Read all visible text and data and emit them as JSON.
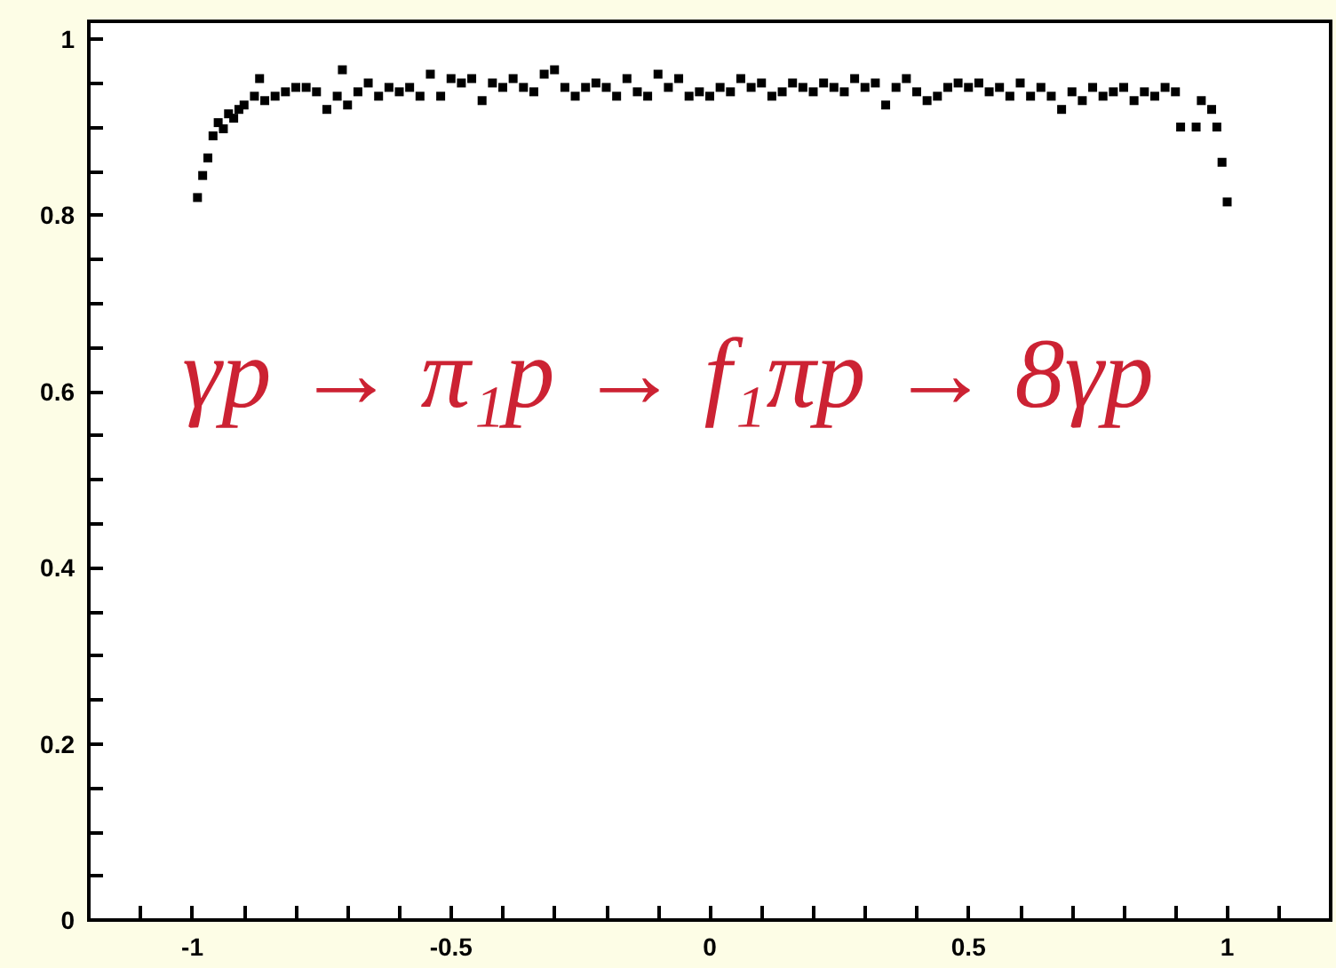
{
  "chart_data": {
    "type": "scatter",
    "marker": "square",
    "color": "#000000",
    "grid": false,
    "annotations": [
      "γp → π₁p → f₁πp → 8γp"
    ],
    "xlim": [
      -1.2,
      1.2
    ],
    "ylim": [
      0,
      1.02
    ],
    "xticks": [
      {
        "value": -1.2,
        "label": null
      },
      {
        "value": -1.1,
        "label": null
      },
      -1,
      {
        "value": -0.9,
        "label": null
      },
      {
        "value": -0.8,
        "label": null
      },
      {
        "value": -0.7,
        "label": null
      },
      {
        "value": -0.6,
        "label": null
      },
      -0.5,
      {
        "value": -0.4,
        "label": null
      },
      {
        "value": -0.3,
        "label": null
      },
      {
        "value": -0.2,
        "label": null
      },
      {
        "value": -0.1,
        "label": null
      },
      0,
      {
        "value": 0.1,
        "label": null
      },
      {
        "value": 0.2,
        "label": null
      },
      {
        "value": 0.3,
        "label": null
      },
      {
        "value": 0.4,
        "label": null
      },
      0.5,
      {
        "value": 0.6,
        "label": null
      },
      {
        "value": 0.7,
        "label": null
      },
      {
        "value": 0.8,
        "label": null
      },
      {
        "value": 0.9,
        "label": null
      },
      1,
      {
        "value": 1.1,
        "label": null
      }
    ],
    "yticks": [
      0,
      {
        "value": 0.05,
        "label": null
      },
      {
        "value": 0.1,
        "label": null
      },
      {
        "value": 0.15,
        "label": null
      },
      0.2,
      {
        "value": 0.25,
        "label": null
      },
      {
        "value": 0.3,
        "label": null
      },
      {
        "value": 0.35,
        "label": null
      },
      0.4,
      {
        "value": 0.45,
        "label": null
      },
      {
        "value": 0.5,
        "label": null
      },
      {
        "value": 0.55,
        "label": null
      },
      0.6,
      {
        "value": 0.65,
        "label": null
      },
      {
        "value": 0.7,
        "label": null
      },
      {
        "value": 0.75,
        "label": null
      },
      0.8,
      {
        "value": 0.85,
        "label": null
      },
      {
        "value": 0.9,
        "label": null
      },
      {
        "value": 0.95,
        "label": null
      },
      1
    ],
    "x": [
      -0.99,
      -0.98,
      -0.97,
      -0.96,
      -0.95,
      -0.94,
      -0.93,
      -0.92,
      -0.91,
      -0.9,
      -0.88,
      -0.87,
      -0.86,
      -0.84,
      -0.82,
      -0.8,
      -0.78,
      -0.76,
      -0.74,
      -0.72,
      -0.71,
      -0.7,
      -0.68,
      -0.66,
      -0.64,
      -0.62,
      -0.6,
      -0.58,
      -0.56,
      -0.54,
      -0.52,
      -0.5,
      -0.48,
      -0.46,
      -0.44,
      -0.42,
      -0.4,
      -0.38,
      -0.36,
      -0.34,
      -0.32,
      -0.3,
      -0.28,
      -0.26,
      -0.24,
      -0.22,
      -0.2,
      -0.18,
      -0.16,
      -0.14,
      -0.12,
      -0.1,
      -0.08,
      -0.06,
      -0.04,
      -0.02,
      0,
      0.02,
      0.04,
      0.06,
      0.08,
      0.1,
      0.12,
      0.14,
      0.16,
      0.18,
      0.2,
      0.22,
      0.24,
      0.26,
      0.28,
      0.3,
      0.32,
      0.34,
      0.36,
      0.38,
      0.4,
      0.42,
      0.44,
      0.46,
      0.48,
      0.5,
      0.52,
      0.54,
      0.56,
      0.58,
      0.6,
      0.62,
      0.64,
      0.66,
      0.68,
      0.7,
      0.72,
      0.74,
      0.76,
      0.78,
      0.8,
      0.82,
      0.84,
      0.86,
      0.88,
      0.9,
      0.91,
      0.94,
      0.95,
      0.97,
      0.98,
      0.99,
      1
    ],
    "values": [
      0.82,
      0.845,
      0.865,
      0.89,
      0.905,
      0.898,
      0.915,
      0.91,
      0.92,
      0.925,
      0.935,
      0.955,
      0.93,
      0.935,
      0.94,
      0.945,
      0.945,
      0.94,
      0.92,
      0.935,
      0.965,
      0.925,
      0.94,
      0.95,
      0.935,
      0.945,
      0.94,
      0.945,
      0.935,
      0.96,
      0.935,
      0.955,
      0.95,
      0.955,
      0.93,
      0.95,
      0.945,
      0.955,
      0.945,
      0.94,
      0.96,
      0.965,
      0.945,
      0.935,
      0.945,
      0.95,
      0.945,
      0.935,
      0.955,
      0.94,
      0.935,
      0.96,
      0.945,
      0.955,
      0.935,
      0.94,
      0.935,
      0.945,
      0.94,
      0.955,
      0.945,
      0.95,
      0.935,
      0.94,
      0.95,
      0.945,
      0.94,
      0.95,
      0.945,
      0.94,
      0.955,
      0.945,
      0.95,
      0.925,
      0.945,
      0.955,
      0.94,
      0.93,
      0.935,
      0.945,
      0.95,
      0.945,
      0.95,
      0.94,
      0.945,
      0.935,
      0.95,
      0.935,
      0.945,
      0.935,
      0.92,
      0.94,
      0.93,
      0.945,
      0.935,
      0.94,
      0.945,
      0.93,
      0.94,
      0.935,
      0.945,
      0.94,
      0.9,
      0.9,
      0.93,
      0.92,
      0.9,
      0.86,
      0.815
    ]
  }
}
